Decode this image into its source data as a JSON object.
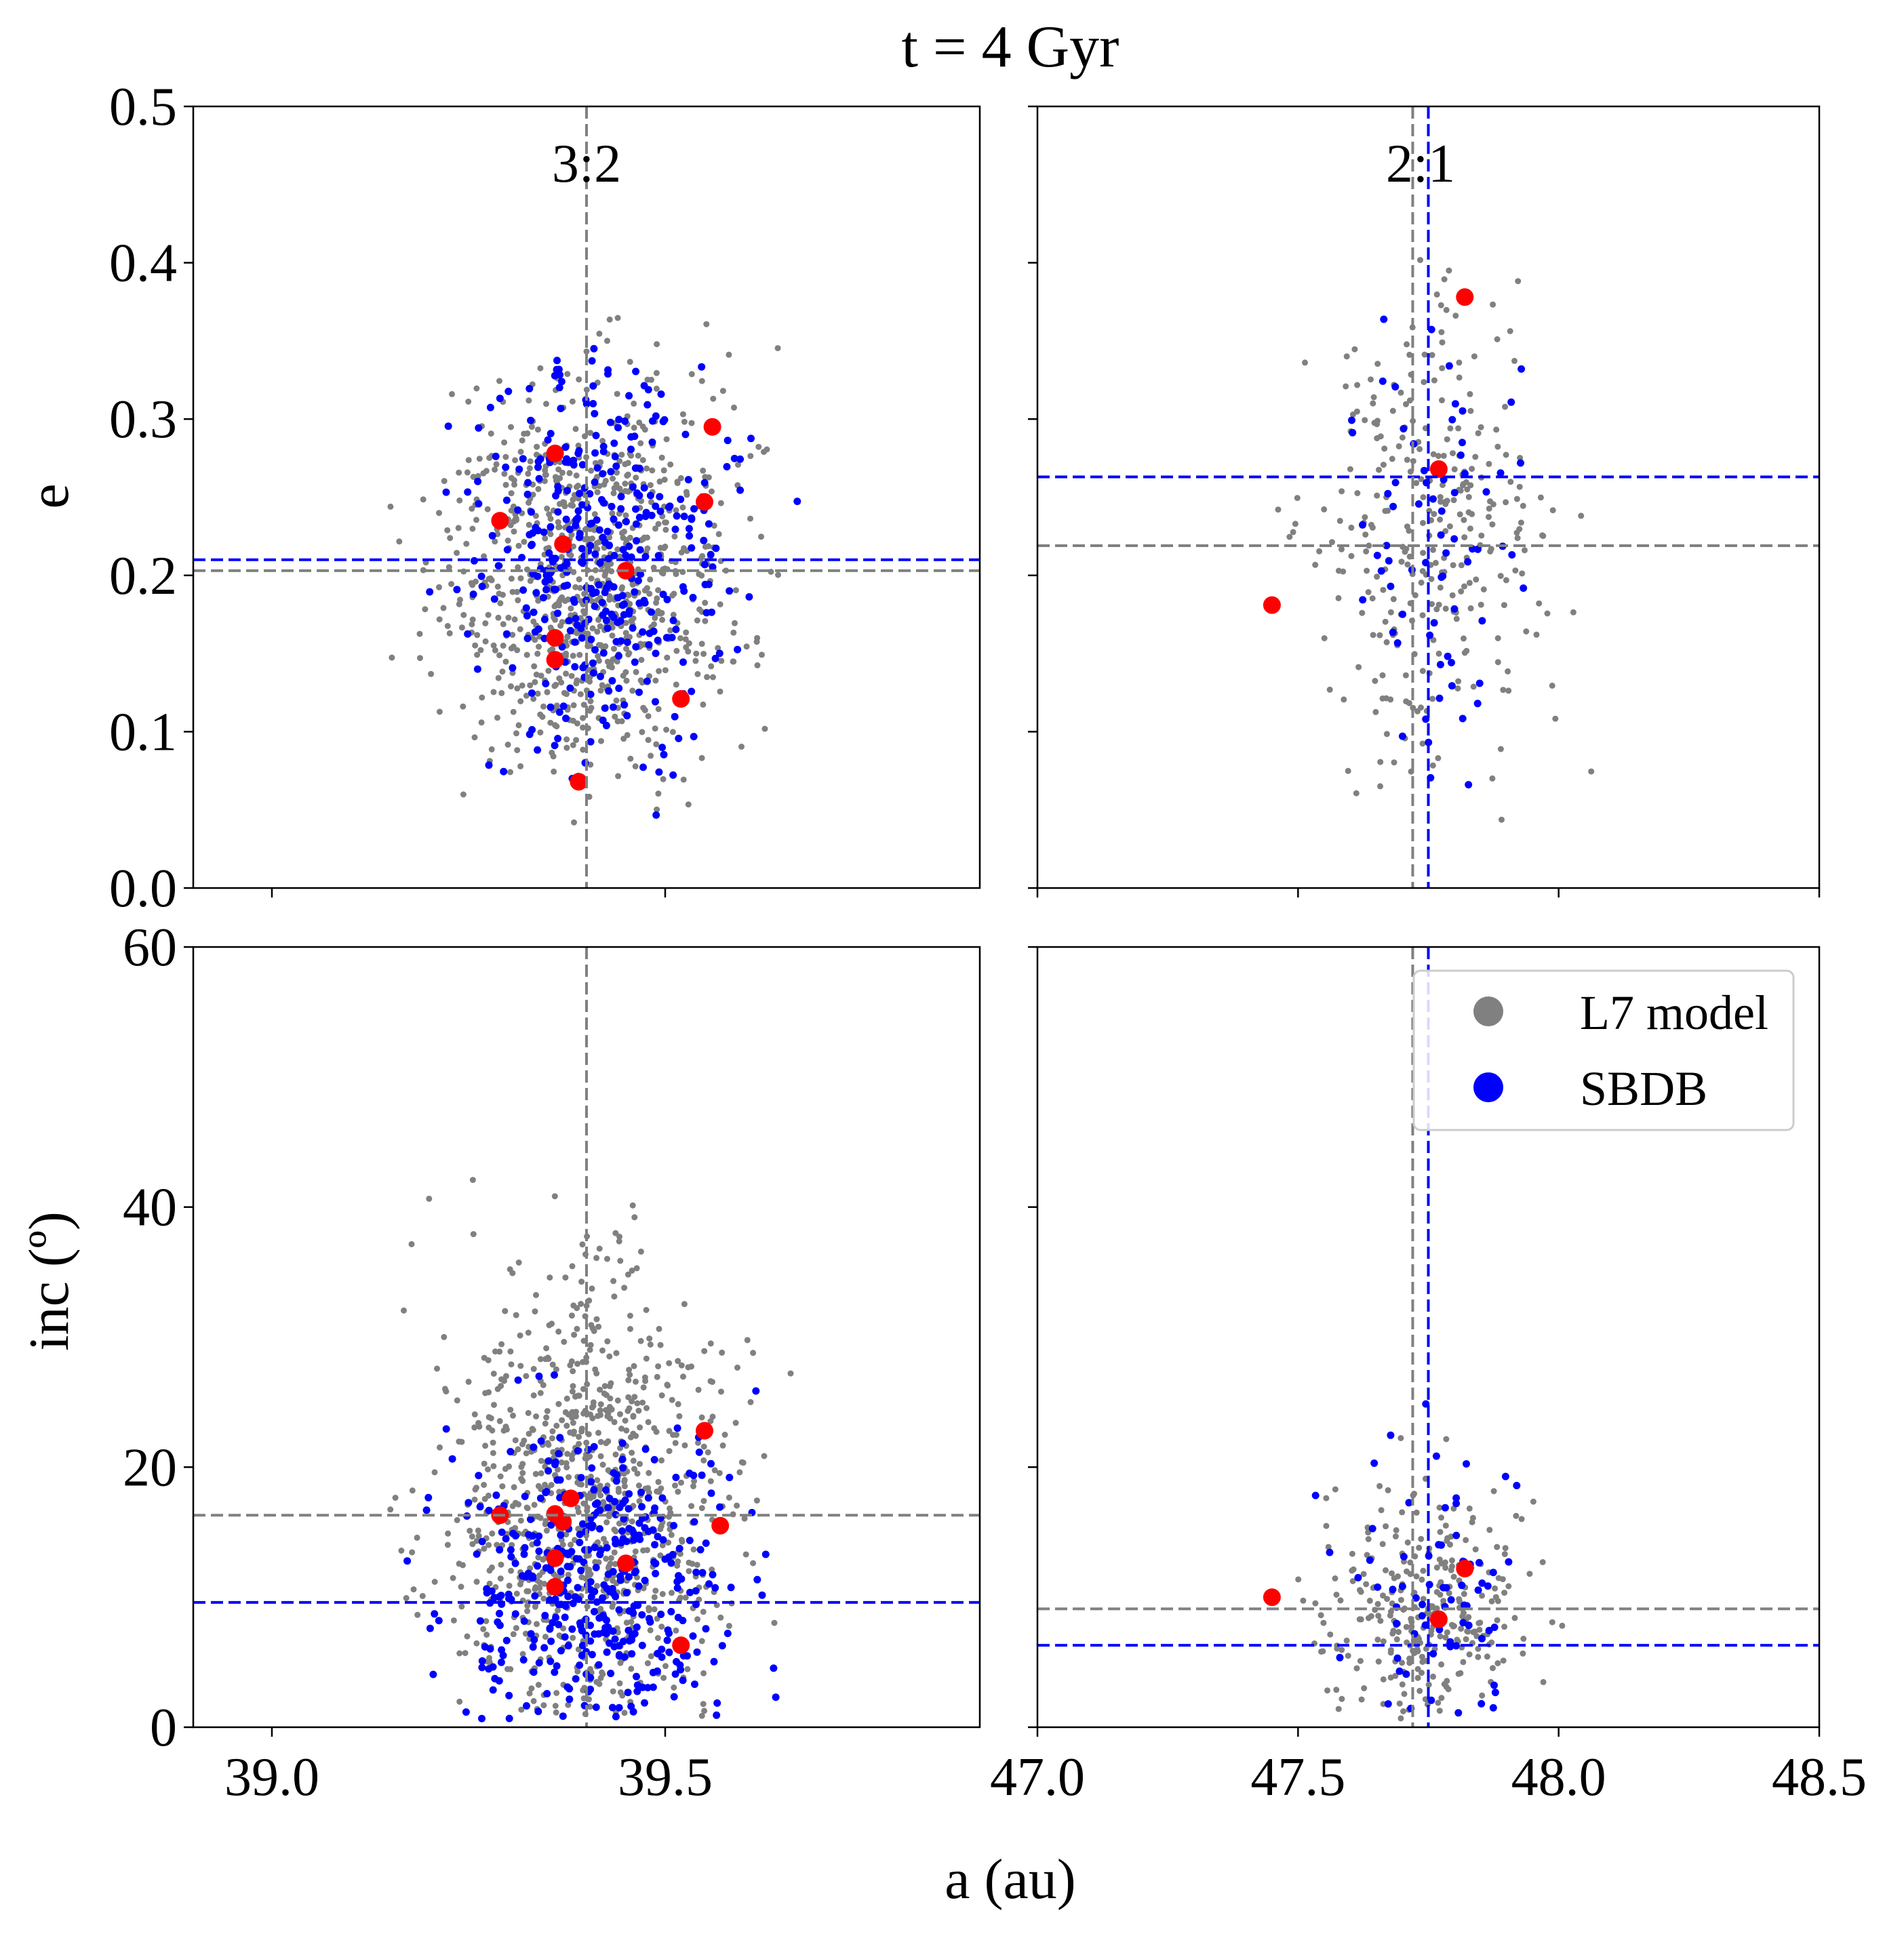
{
  "figure": {
    "title": "t = 4 Gyr",
    "xlabel": "a (au)",
    "ylabel_top": "e",
    "ylabel_bottom": "inc (º)",
    "legend": {
      "placement": "upper-right of bottom-right panel",
      "entries": [
        {
          "label": "L7 model",
          "color": "#808080"
        },
        {
          "label": "SBDB",
          "color": "#0000ff"
        }
      ]
    },
    "colors": {
      "model": "#808080",
      "sbdb": "#0000ff",
      "highlight": "#ff0000"
    }
  },
  "chart_data": [
    {
      "id": "p32e",
      "type": "scatter",
      "resonance_label": "3:2",
      "xlim": [
        38.9,
        39.9
      ],
      "ylim": [
        0.0,
        0.5
      ],
      "yticks": [
        0.0,
        0.1,
        0.2,
        0.3,
        0.4,
        0.5
      ],
      "ytick_labels": [
        "0.0",
        "0.1",
        "0.2",
        "0.3",
        "0.4",
        "0.5"
      ],
      "xticks": [
        39.0,
        39.5
      ],
      "vlines": [
        {
          "x": 39.4,
          "color": "#808080"
        }
      ],
      "hlines": [
        {
          "y": 0.203,
          "color": "#808080"
        },
        {
          "y": 0.21,
          "color": "#0000ff"
        }
      ],
      "series": [
        {
          "name": "L7 model",
          "color": "#808080",
          "cloud": {
            "mean_x": 39.4,
            "sd_x": 0.09,
            "mean_y": 0.2,
            "sd_y": 0.06,
            "count": 900,
            "x_range": [
              39.14,
              39.66
            ],
            "y_range": [
              0.02,
              0.38
            ]
          }
        },
        {
          "name": "SBDB",
          "color": "#0000ff",
          "cloud": {
            "mean_x": 39.42,
            "sd_x": 0.08,
            "mean_y": 0.21,
            "sd_y": 0.06,
            "count": 380,
            "x_range": [
              39.15,
              39.68
            ],
            "y_range": [
              0.04,
              0.36
            ]
          }
        },
        {
          "color": "#ff0000",
          "points": [
            [
              39.56,
              0.295
            ],
            [
              39.36,
              0.278
            ],
            [
              39.29,
              0.235
            ],
            [
              39.55,
              0.247
            ],
            [
              39.37,
              0.22
            ],
            [
              39.45,
              0.203
            ],
            [
              39.36,
              0.16
            ],
            [
              39.36,
              0.146
            ],
            [
              39.52,
              0.121
            ],
            [
              39.39,
              0.068
            ]
          ]
        }
      ]
    },
    {
      "id": "p21e",
      "type": "scatter",
      "resonance_label": "2:1",
      "xlim": [
        47.0,
        48.5
      ],
      "ylim": [
        0.0,
        0.5
      ],
      "yticks": [
        0.0,
        0.1,
        0.2,
        0.3,
        0.4,
        0.5
      ],
      "xticks": [
        47.0,
        47.5,
        48.0,
        48.5
      ],
      "vlines": [
        {
          "x": 47.72,
          "color": "#808080"
        },
        {
          "x": 47.75,
          "color": "#0000ff"
        }
      ],
      "hlines": [
        {
          "y": 0.219,
          "color": "#808080"
        },
        {
          "y": 0.263,
          "color": "#0000ff"
        }
      ],
      "series": [
        {
          "name": "L7 model",
          "color": "#808080",
          "cloud": {
            "mean_x": 47.74,
            "sd_x": 0.11,
            "mean_y": 0.22,
            "sd_y": 0.07,
            "count": 300,
            "x_range": [
              47.45,
              48.1
            ],
            "y_range": [
              0.04,
              0.41
            ]
          }
        },
        {
          "name": "SBDB",
          "color": "#0000ff",
          "cloud": {
            "mean_x": 47.76,
            "sd_x": 0.08,
            "mean_y": 0.23,
            "sd_y": 0.08,
            "count": 70,
            "x_range": [
              47.5,
              47.95
            ],
            "y_range": [
              0.05,
              0.37
            ]
          }
        },
        {
          "color": "#ff0000",
          "points": [
            [
              47.82,
              0.378
            ],
            [
              47.77,
              0.268
            ],
            [
              47.45,
              0.181
            ]
          ]
        }
      ]
    },
    {
      "id": "p32i",
      "type": "scatter",
      "xlim": [
        38.9,
        39.9
      ],
      "ylim": [
        0,
        60
      ],
      "yticks": [
        0,
        20,
        40,
        60
      ],
      "ytick_labels": [
        "0",
        "20",
        "40",
        "60"
      ],
      "xticks": [
        39.0,
        39.5
      ],
      "xtick_labels": [
        "39.0",
        "39.5"
      ],
      "vlines": [
        {
          "x": 39.4,
          "color": "#808080"
        }
      ],
      "hlines": [
        {
          "y": 16.3,
          "color": "#808080"
        },
        {
          "y": 9.6,
          "color": "#0000ff"
        }
      ],
      "series": [
        {
          "name": "L7 model",
          "color": "#808080",
          "cloud": {
            "mean_x": 39.4,
            "sd_x": 0.09,
            "mean_y": 17,
            "sd_y": 9,
            "count": 900,
            "x_range": [
              39.14,
              39.66
            ],
            "y_range": [
              0.5,
              58
            ]
          }
        },
        {
          "name": "SBDB",
          "color": "#0000ff",
          "cloud": {
            "mean_x": 39.42,
            "sd_x": 0.09,
            "mean_y": 10,
            "sd_y": 6,
            "count": 420,
            "x_range": [
              39.15,
              39.66
            ],
            "y_range": [
              0.5,
              36
            ]
          }
        },
        {
          "color": "#ff0000",
          "points": [
            [
              39.55,
              22.8
            ],
            [
              39.29,
              16.3
            ],
            [
              39.36,
              16.4
            ],
            [
              39.38,
              17.6
            ],
            [
              39.37,
              15.8
            ],
            [
              39.57,
              15.5
            ],
            [
              39.36,
              13.0
            ],
            [
              39.45,
              12.6
            ],
            [
              39.36,
              10.8
            ],
            [
              39.52,
              6.3
            ]
          ]
        }
      ]
    },
    {
      "id": "p21i",
      "type": "scatter",
      "xlim": [
        47.0,
        48.5
      ],
      "ylim": [
        0,
        60
      ],
      "yticks": [
        0,
        20,
        40,
        60
      ],
      "xticks": [
        47.0,
        47.5,
        48.0,
        48.5
      ],
      "xtick_labels": [
        "47.0",
        "47.5",
        "48.0",
        "48.5"
      ],
      "vlines": [
        {
          "x": 47.72,
          "color": "#808080"
        },
        {
          "x": 47.75,
          "color": "#0000ff"
        }
      ],
      "hlines": [
        {
          "y": 9.1,
          "color": "#808080"
        },
        {
          "y": 6.3,
          "color": "#0000ff"
        }
      ],
      "series": [
        {
          "name": "L7 model",
          "color": "#808080",
          "cloud": {
            "mean_x": 47.74,
            "sd_x": 0.11,
            "mean_y": 9,
            "sd_y": 4.5,
            "count": 300,
            "x_range": [
              47.45,
              48.1
            ],
            "y_range": [
              0.5,
              35
            ]
          }
        },
        {
          "name": "SBDB",
          "color": "#0000ff",
          "cloud": {
            "mean_x": 47.77,
            "sd_x": 0.08,
            "mean_y": 8,
            "sd_y": 6,
            "count": 70,
            "x_range": [
              47.5,
              47.95
            ],
            "y_range": [
              0.5,
              32
            ]
          }
        },
        {
          "color": "#ff0000",
          "points": [
            [
              47.82,
              12.2
            ],
            [
              47.45,
              10.0
            ],
            [
              47.77,
              8.3
            ]
          ]
        }
      ]
    }
  ]
}
